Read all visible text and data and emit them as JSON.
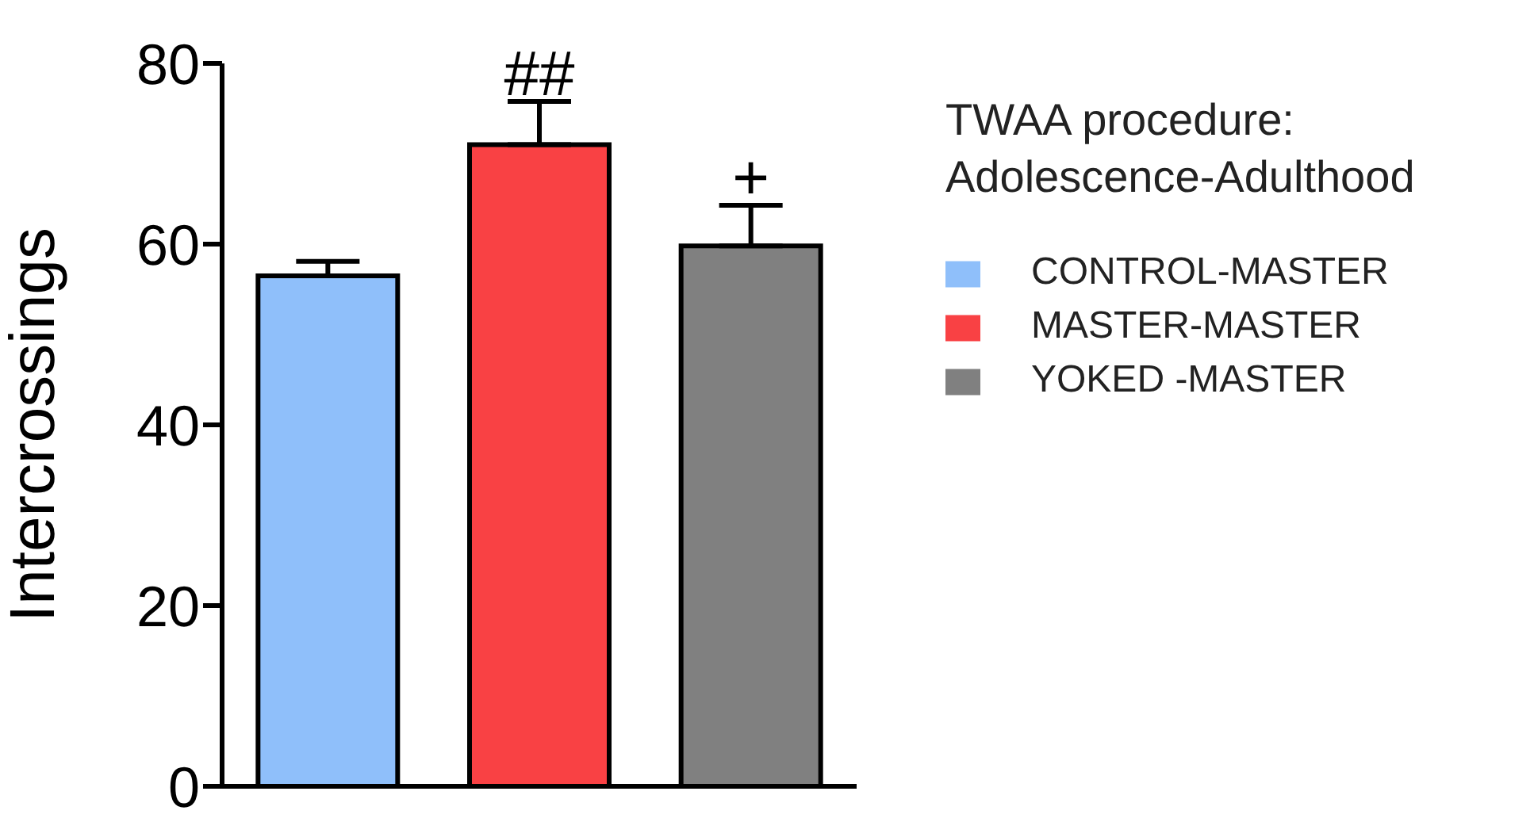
{
  "chart_data": {
    "type": "bar",
    "ylabel": "Intercrossings",
    "legend_title": "TWAA procedure:\nAdolescence-Adulthood",
    "categories": [
      null,
      null,
      null
    ],
    "series": [
      {
        "name": "CONTROL-MASTER",
        "color": "#8fbffa",
        "values": [
          56.5,
          null,
          null
        ],
        "errors": [
          [
            56.5,
            58.1
          ],
          null,
          null
        ]
      },
      {
        "name": "MASTER-MASTER",
        "color": "#f94144",
        "values": [
          null,
          71.0,
          null
        ],
        "errors": [
          null,
          [
            71.0,
            75.8
          ],
          null
        ]
      },
      {
        "name": "YOKED -MASTER",
        "color": "#808080",
        "values": [
          null,
          null,
          59.8
        ],
        "errors": [
          null,
          null,
          [
            59.8,
            64.3
          ]
        ]
      }
    ],
    "ylim": [
      0,
      80
    ],
    "yticks": [
      0,
      20,
      40,
      60,
      80
    ],
    "stacked": true,
    "legend": "right",
    "grid": false,
    "annotations": [
      {
        "text": "##",
        "y": 75.8
      },
      {
        "text": "+",
        "y": 64.3
      }
    ]
  }
}
